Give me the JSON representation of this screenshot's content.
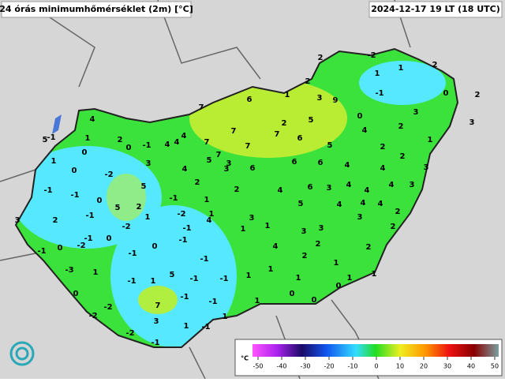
{
  "header": {
    "title": "24 órás minimumhőmérséklet (2m) [°C]",
    "timestamp": "2024-12-17 19 LT (18 UTC)"
  },
  "stations": [
    2,
    -2,
    1,
    1,
    2,
    -1,
    0,
    2,
    3,
    3,
    1,
    2,
    0,
    4,
    2,
    2,
    3,
    4,
    2,
    1,
    3,
    9,
    6,
    7,
    7,
    7,
    7,
    2,
    5,
    7,
    6,
    5,
    6,
    6,
    4,
    4,
    4,
    4,
    3,
    3,
    6,
    5,
    4,
    4,
    4,
    2,
    3,
    2,
    4,
    6,
    3,
    2,
    5,
    7,
    3,
    2,
    4,
    4,
    4,
    4,
    -1,
    0,
    2,
    4,
    1,
    0,
    5,
    -1,
    1,
    0,
    -2,
    3,
    5,
    0,
    -1,
    -1,
    -1,
    5,
    2,
    2,
    3,
    -1,
    -2,
    1,
    4,
    1,
    -1,
    1,
    -2,
    -1,
    -2,
    0,
    0,
    -1,
    -1,
    0,
    -3,
    1,
    -1,
    -1,
    -1,
    5,
    -1,
    1,
    -1,
    1,
    1,
    1,
    3,
    4,
    3,
    3,
    1,
    2,
    2,
    1,
    2,
    1,
    0,
    1,
    1,
    1,
    0,
    0,
    0,
    -2,
    7,
    -1,
    -1,
    -2,
    3,
    1,
    -1,
    1,
    -2,
    -1
  ],
  "colorbar": {
    "unit": "°C",
    "ticks": [
      -50,
      -40,
      -30,
      -20,
      -10,
      0,
      10,
      20,
      30,
      40,
      50
    ]
  }
}
